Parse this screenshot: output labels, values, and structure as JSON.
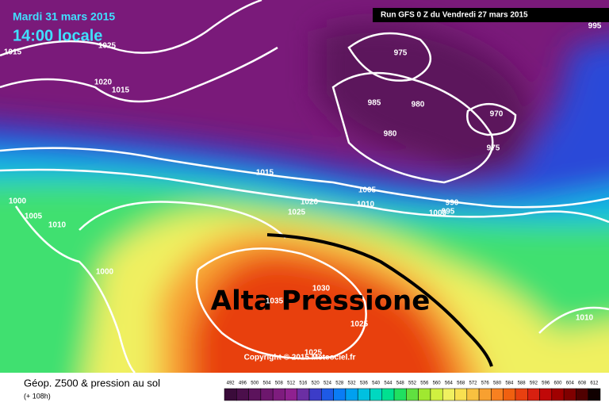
{
  "header": {
    "date": "Mardi 31 mars 2015",
    "time": "14:00 locale",
    "run": "Run GFS 0 Z du Vendredi 27 mars 2015"
  },
  "map": {
    "annotation": "Alta Pressione",
    "copyright": "Copyright © 2015 Meteociel.fr",
    "isobar_labels": [
      1015,
      1025,
      1020,
      1015,
      975,
      985,
      980,
      970,
      980,
      975,
      995,
      1015,
      1005,
      1020,
      1010,
      1025,
      990,
      995,
      1000,
      1000,
      1005,
      1010,
      1000,
      1030,
      1035,
      1025,
      1025,
      1010
    ]
  },
  "footer": {
    "title": "Géop. Z500 & pression au sol",
    "subtitle": "(+ 108h)"
  },
  "legend": {
    "values": [
      492,
      496,
      500,
      504,
      508,
      512,
      516,
      520,
      524,
      528,
      532,
      536,
      540,
      544,
      548,
      552,
      556,
      560,
      564,
      568,
      572,
      576,
      580,
      584,
      588,
      592,
      596,
      600,
      604,
      608,
      612
    ],
    "colors": [
      "#3a0b3a",
      "#4b0f4b",
      "#5c135c",
      "#6d176d",
      "#7e1c7e",
      "#8f2190",
      "#6b2fa3",
      "#3c3cc8",
      "#1e5ae6",
      "#0a7cf5",
      "#00a0f0",
      "#00c0e0",
      "#00d8c0",
      "#00e090",
      "#20e060",
      "#60e040",
      "#a0e830",
      "#d0f040",
      "#f0f060",
      "#f8e050",
      "#f8c040",
      "#f8a030",
      "#f88020",
      "#f06010",
      "#e84010",
      "#d82010",
      "#c00808",
      "#a00000",
      "#800000",
      "#500000",
      "#100000"
    ]
  }
}
